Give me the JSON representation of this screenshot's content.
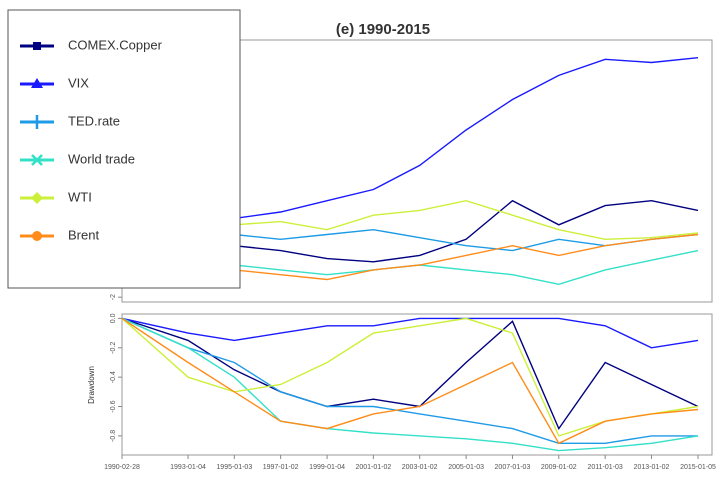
{
  "chart_data": [
    {
      "type": "line",
      "title": "(e) 1990-2015",
      "x": [
        "1990-02-28",
        "1993-01-04",
        "1995-01-03",
        "1997-01-02",
        "1999-01-04",
        "2001-01-02",
        "2003-01-02",
        "2005-01-03",
        "2007-01-03",
        "2009-01-02",
        "2011-01-03",
        "2013-01-02",
        "2015-01-05"
      ],
      "xlim": [
        "1990-02-28",
        "2015-01-05"
      ],
      "ylim": [
        -2.3,
        14
      ],
      "yticks": [
        -2
      ],
      "legend": "top-left",
      "series": [
        {
          "name": "COMEX.Copper",
          "color": "#000080",
          "marker": "square",
          "values": [
            1.9,
            1.6,
            1.2,
            0.9,
            0.4,
            0.2,
            0.6,
            1.6,
            4.0,
            2.5,
            3.7,
            4.0,
            3.4
          ]
        },
        {
          "name": "VIX",
          "color": "#1a1aff",
          "marker": "triangle",
          "values": [
            2.5,
            2.7,
            2.9,
            3.3,
            4.0,
            4.7,
            6.2,
            8.4,
            10.3,
            11.8,
            12.8,
            12.6,
            12.9
          ]
        },
        {
          "name": "TED.rate",
          "color": "#1e9be6",
          "marker": "plus",
          "values": [
            2.5,
            2.2,
            1.9,
            1.6,
            1.9,
            2.2,
            1.7,
            1.2,
            0.9,
            1.6,
            1.2,
            1.6,
            1.9
          ]
        },
        {
          "name": "World trade",
          "color": "#33e0c8",
          "marker": "cross",
          "values": [
            1.2,
            0.3,
            0,
            -0.3,
            -0.6,
            -0.3,
            0,
            -0.3,
            -0.6,
            -1.2,
            -0.3,
            0.3,
            0.9
          ]
        },
        {
          "name": "WTI",
          "color": "#ccf03a",
          "marker": "diamond",
          "values": [
            2.2,
            2.3,
            2.5,
            2.7,
            2.2,
            3.1,
            3.4,
            4.0,
            3.1,
            2.2,
            1.6,
            1.7,
            2.0
          ]
        },
        {
          "name": "Brent",
          "color": "#ff8c1a",
          "marker": "circle",
          "values": [
            0.3,
            0,
            -0.3,
            -0.6,
            -0.9,
            -0.3,
            0,
            0.6,
            1.2,
            0.6,
            1.2,
            1.6,
            1.9
          ]
        }
      ]
    },
    {
      "type": "line",
      "ylabel": "Drawdown",
      "x": [
        "1990-02-28",
        "1993-01-04",
        "1995-01-03",
        "1997-01-02",
        "1999-01-04",
        "2001-01-02",
        "2003-01-02",
        "2005-01-03",
        "2007-01-03",
        "2009-01-02",
        "2011-01-03",
        "2013-01-02",
        "2015-01-05"
      ],
      "xlim": [
        "1990-02-28",
        "2015-01-05"
      ],
      "xticks": [
        "1990-02-28",
        "1993-01-04",
        "1995-01-03",
        "1997-01-02",
        "1999-01-04",
        "2001-01-02",
        "2003-01-02",
        "2005-01-03",
        "2007-01-03",
        "2009-01-02",
        "2011-01-03",
        "2013-01-02",
        "2015-01-05"
      ],
      "ylim": [
        -0.93,
        0.03
      ],
      "yticks": [
        {
          "value": 0,
          "label": "0.0"
        },
        -0.2,
        -0.4,
        -0.6,
        -0.8
      ],
      "series": [
        {
          "color": "#000080",
          "values": [
            0,
            -0.15,
            -0.35,
            -0.5,
            -0.6,
            -0.55,
            -0.6,
            -0.3,
            -0.02,
            -0.75,
            -0.3,
            -0.45,
            -0.6
          ]
        },
        {
          "color": "#1a1aff",
          "values": [
            0,
            -0.1,
            -0.15,
            -0.1,
            -0.05,
            -0.05,
            0,
            0,
            0,
            0,
            -0.05,
            -0.2,
            -0.15
          ]
        },
        {
          "color": "#1e9be6",
          "values": [
            0,
            -0.2,
            -0.3,
            -0.5,
            -0.6,
            -0.6,
            -0.65,
            -0.7,
            -0.75,
            -0.85,
            -0.85,
            -0.8,
            -0.8
          ]
        },
        {
          "color": "#33e0c8",
          "values": [
            0,
            -0.2,
            -0.4,
            -0.7,
            -0.75,
            -0.78,
            -0.8,
            -0.82,
            -0.85,
            -0.9,
            -0.88,
            -0.85,
            -0.8
          ]
        },
        {
          "color": "#ccf03a",
          "values": [
            0,
            -0.4,
            -0.5,
            -0.45,
            -0.3,
            -0.1,
            -0.05,
            0,
            -0.1,
            -0.8,
            -0.7,
            -0.65,
            -0.6
          ]
        },
        {
          "color": "#ff8c1a",
          "values": [
            0,
            -0.3,
            -0.5,
            -0.7,
            -0.75,
            -0.65,
            -0.6,
            -0.45,
            -0.3,
            -0.85,
            -0.7,
            -0.65,
            -0.62
          ]
        }
      ]
    }
  ]
}
